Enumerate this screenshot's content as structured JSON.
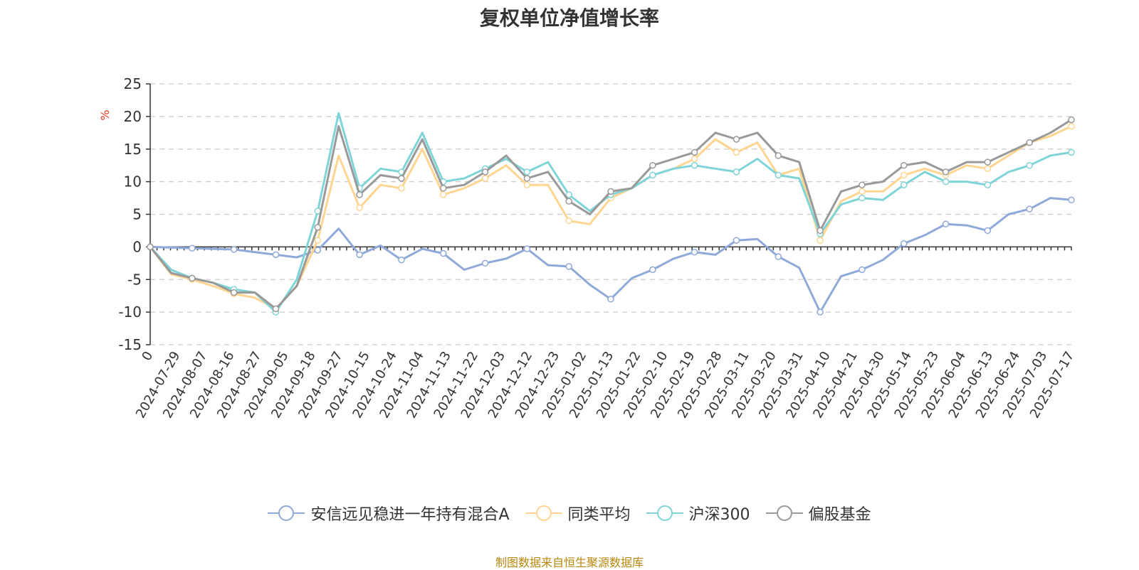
{
  "chart_data": {
    "type": "line",
    "title": "复权单位净值增长率",
    "ylabel": "%",
    "ylim": [
      -15,
      25
    ],
    "yticks": [
      -15,
      -10,
      -5,
      0,
      5,
      10,
      15,
      20,
      25
    ],
    "xticks": [
      "0",
      "2024-07-29",
      "2024-08-07",
      "2024-08-16",
      "2024-08-27",
      "2024-09-05",
      "2024-09-18",
      "2024-09-27",
      "2024-10-15",
      "2024-10-24",
      "2024-11-04",
      "2024-11-13",
      "2024-11-22",
      "2024-12-03",
      "2024-12-12",
      "2024-12-23",
      "2025-01-02",
      "2025-01-13",
      "2025-01-22",
      "2025-02-10",
      "2025-02-19",
      "2025-02-28",
      "2025-03-11",
      "2025-03-20",
      "2025-03-31",
      "2025-04-10",
      "2025-04-21",
      "2025-04-30",
      "2025-05-14",
      "2025-05-23",
      "2025-06-04",
      "2025-06-13",
      "2025-06-24",
      "2025-07-03",
      "2025-07-17"
    ],
    "grid": true,
    "legend_position": "bottom",
    "series": [
      {
        "name": "安信远见稳进一年持有混合A",
        "color": "#8fa9d8",
        "values": [
          0,
          -0.1,
          -0.2,
          -0.3,
          -0.4,
          -0.8,
          -1.2,
          -1.6,
          -0.5,
          2.8,
          -1.2,
          0.2,
          -2.0,
          -0.3,
          -1.0,
          -3.5,
          -2.5,
          -1.8,
          -0.3,
          -2.8,
          -3.0,
          -5.8,
          -8.0,
          -4.8,
          -3.5,
          -1.8,
          -0.8,
          -1.2,
          1.0,
          1.2,
          -1.5,
          -3.2,
          -10.0,
          -4.5,
          -3.5,
          -2.0,
          0.5,
          1.8,
          3.5,
          3.3,
          2.5,
          5.0,
          5.8,
          7.5,
          7.2
        ]
      },
      {
        "name": "同类平均",
        "color": "#ffd591",
        "values": [
          0,
          -4.2,
          -5.0,
          -6.0,
          -7.2,
          -7.8,
          -9.5,
          -6.0,
          1.0,
          14.0,
          6.0,
          9.5,
          9.0,
          15.0,
          8.0,
          9.0,
          10.5,
          12.5,
          9.5,
          9.5,
          4.0,
          3.5,
          7.5,
          9.0,
          11.0,
          12.0,
          13.5,
          16.5,
          14.5,
          16.0,
          11.0,
          12.0,
          1.0,
          7.0,
          8.5,
          8.5,
          11.0,
          12.0,
          11.0,
          12.5,
          12.0,
          14.0,
          16.0,
          17.0,
          18.5
        ]
      },
      {
        "name": "沪深300",
        "color": "#7fd4d8",
        "values": [
          0,
          -3.5,
          -4.8,
          -5.5,
          -6.5,
          -7.0,
          -10.0,
          -5.0,
          5.5,
          20.5,
          9.0,
          12.0,
          11.5,
          17.5,
          10.0,
          10.5,
          12.0,
          13.5,
          11.5,
          13.0,
          8.0,
          5.5,
          8.0,
          9.0,
          11.0,
          12.0,
          12.5,
          12.0,
          11.5,
          13.5,
          11.0,
          10.5,
          2.0,
          6.5,
          7.5,
          7.2,
          9.5,
          11.5,
          10.0,
          10.0,
          9.5,
          11.5,
          12.5,
          14.0,
          14.5
        ]
      },
      {
        "name": "偏股基金",
        "color": "#999999",
        "values": [
          0,
          -4.0,
          -4.8,
          -5.5,
          -7.0,
          -7.0,
          -9.5,
          -6.0,
          3.0,
          18.5,
          8.0,
          11.0,
          10.5,
          16.5,
          9.0,
          9.5,
          11.5,
          14.0,
          10.5,
          11.5,
          7.0,
          5.0,
          8.5,
          9.0,
          12.5,
          13.5,
          14.5,
          17.5,
          16.5,
          17.5,
          14.0,
          13.0,
          2.5,
          8.5,
          9.5,
          10.0,
          12.5,
          13.0,
          11.5,
          13.0,
          13.0,
          14.5,
          16.0,
          17.5,
          19.5
        ]
      }
    ]
  },
  "source_text": "制图数据来自恒生聚源数据库",
  "source_color": "#b8860b"
}
